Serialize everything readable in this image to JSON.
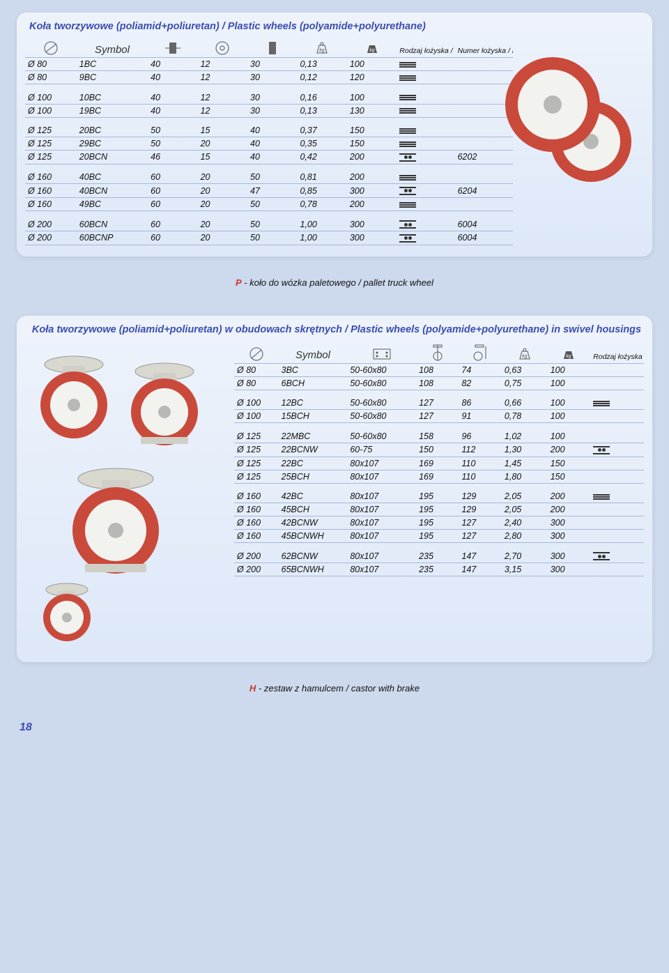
{
  "page_number": "18",
  "panel1": {
    "title": "Koła tworzywowe (poliamid+poliuretan) / Plastic wheels (polyamide+polyurethane)",
    "header": {
      "symbol": "Symbol",
      "bearing_type": "Rodzaj łożyska / Type of bearing",
      "bearing_number": "Numer łożyska / Number of bearing"
    },
    "groups": [
      [
        {
          "dia": "Ø 80",
          "sym": "1BC",
          "c1": "40",
          "c2": "12",
          "c3": "30",
          "wt": "0,13",
          "cap": "100",
          "brg": "plain",
          "num": ""
        },
        {
          "dia": "Ø 80",
          "sym": "9BC",
          "c1": "40",
          "c2": "12",
          "c3": "30",
          "wt": "0,12",
          "cap": "120",
          "brg": "plain",
          "num": ""
        }
      ],
      [
        {
          "dia": "Ø 100",
          "sym": "10BC",
          "c1": "40",
          "c2": "12",
          "c3": "30",
          "wt": "0,16",
          "cap": "100",
          "brg": "plain",
          "num": ""
        },
        {
          "dia": "Ø 100",
          "sym": "19BC",
          "c1": "40",
          "c2": "12",
          "c3": "30",
          "wt": "0,13",
          "cap": "130",
          "brg": "plain",
          "num": ""
        }
      ],
      [
        {
          "dia": "Ø 125",
          "sym": "20BC",
          "c1": "50",
          "c2": "15",
          "c3": "40",
          "wt": "0,37",
          "cap": "150",
          "brg": "plain",
          "num": ""
        },
        {
          "dia": "Ø 125",
          "sym": "29BC",
          "c1": "50",
          "c2": "20",
          "c3": "40",
          "wt": "0,35",
          "cap": "150",
          "brg": "plain",
          "num": ""
        },
        {
          "dia": "Ø 125",
          "sym": "20BCN",
          "c1": "46",
          "c2": "15",
          "c3": "40",
          "wt": "0,42",
          "cap": "200",
          "brg": "ball",
          "num": "6202"
        }
      ],
      [
        {
          "dia": "Ø 160",
          "sym": "40BC",
          "c1": "60",
          "c2": "20",
          "c3": "50",
          "wt": "0,81",
          "cap": "200",
          "brg": "plain",
          "num": ""
        },
        {
          "dia": "Ø 160",
          "sym": "40BCN",
          "c1": "60",
          "c2": "20",
          "c3": "47",
          "wt": "0,85",
          "cap": "300",
          "brg": "ball",
          "num": "6204"
        },
        {
          "dia": "Ø 160",
          "sym": "49BC",
          "c1": "60",
          "c2": "20",
          "c3": "50",
          "wt": "0,78",
          "cap": "200",
          "brg": "plain",
          "num": ""
        }
      ],
      [
        {
          "dia": "Ø 200",
          "sym": "60BCN",
          "c1": "60",
          "c2": "20",
          "c3": "50",
          "wt": "1,00",
          "cap": "300",
          "brg": "ball",
          "num": "6004"
        },
        {
          "dia": "Ø 200",
          "sym": "60BCNP",
          "c1": "60",
          "c2": "20",
          "c3": "50",
          "wt": "1,00",
          "cap": "300",
          "brg": "ball",
          "num": "6004"
        }
      ]
    ]
  },
  "note1": {
    "letter": "P",
    "text": " - koło do wózka paletowego / pallet truck wheel"
  },
  "panel2": {
    "title": "Koła tworzywowe (poliamid+poliuretan) w obudowach skrętnych / Plastic wheels (polyamide+polyurethane) in swivel housings",
    "header": {
      "symbol": "Symbol",
      "bearing_type": "Rodzaj łożyska / Type of bearing"
    },
    "groups": [
      [
        {
          "dia": "Ø 80",
          "sym": "3BC",
          "plate": "50-60x80",
          "h": "108",
          "r": "74",
          "wt": "0,63",
          "cap": "100",
          "brg": ""
        },
        {
          "dia": "Ø 80",
          "sym": "6BCH",
          "plate": "50-60x80",
          "h": "108",
          "r": "82",
          "wt": "0,75",
          "cap": "100",
          "brg": ""
        }
      ],
      [
        {
          "dia": "Ø 100",
          "sym": "12BC",
          "plate": "50-60x80",
          "h": "127",
          "r": "86",
          "wt": "0,66",
          "cap": "100",
          "brg": "plain"
        },
        {
          "dia": "Ø 100",
          "sym": "15BCH",
          "plate": "50-60x80",
          "h": "127",
          "r": "91",
          "wt": "0,78",
          "cap": "100",
          "brg": ""
        }
      ],
      [
        {
          "dia": "Ø 125",
          "sym": "22MBC",
          "plate": "50-60x80",
          "h": "158",
          "r": "96",
          "wt": "1,02",
          "cap": "100",
          "brg": ""
        },
        {
          "dia": "Ø 125",
          "sym": "22BCNW",
          "plate": "60-75",
          "h": "150",
          "r": "112",
          "wt": "1,30",
          "cap": "200",
          "brg": "ball"
        },
        {
          "dia": "Ø 125",
          "sym": "22BC",
          "plate": "80x107",
          "h": "169",
          "r": "110",
          "wt": "1,45",
          "cap": "150",
          "brg": ""
        },
        {
          "dia": "Ø 125",
          "sym": "25BCH",
          "plate": "80x107",
          "h": "169",
          "r": "110",
          "wt": "1,80",
          "cap": "150",
          "brg": ""
        }
      ],
      [
        {
          "dia": "Ø 160",
          "sym": "42BC",
          "plate": "80x107",
          "h": "195",
          "r": "129",
          "wt": "2,05",
          "cap": "200",
          "brg": "plain"
        },
        {
          "dia": "Ø 160",
          "sym": "45BCH",
          "plate": "80x107",
          "h": "195",
          "r": "129",
          "wt": "2,05",
          "cap": "200",
          "brg": ""
        },
        {
          "dia": "Ø 160",
          "sym": "42BCNW",
          "plate": "80x107",
          "h": "195",
          "r": "127",
          "wt": "2,40",
          "cap": "300",
          "brg": ""
        },
        {
          "dia": "Ø 160",
          "sym": "45BCNWH",
          "plate": "80x107",
          "h": "195",
          "r": "127",
          "wt": "2,80",
          "cap": "300",
          "brg": ""
        }
      ],
      [
        {
          "dia": "Ø 200",
          "sym": "62BCNW",
          "plate": "80x107",
          "h": "235",
          "r": "147",
          "wt": "2,70",
          "cap": "300",
          "brg": "ball"
        },
        {
          "dia": "Ø 200",
          "sym": "65BCNWH",
          "plate": "80x107",
          "h": "235",
          "r": "147",
          "wt": "3,15",
          "cap": "300",
          "brg": ""
        }
      ]
    ]
  },
  "note2": {
    "letter": "H",
    "text": " - zestaw z hamulcem / castor with brake"
  },
  "colors": {
    "wheel_red": "#c94a3b",
    "wheel_white": "#f2f2ef",
    "hub_grey": "#b8b8b6"
  }
}
